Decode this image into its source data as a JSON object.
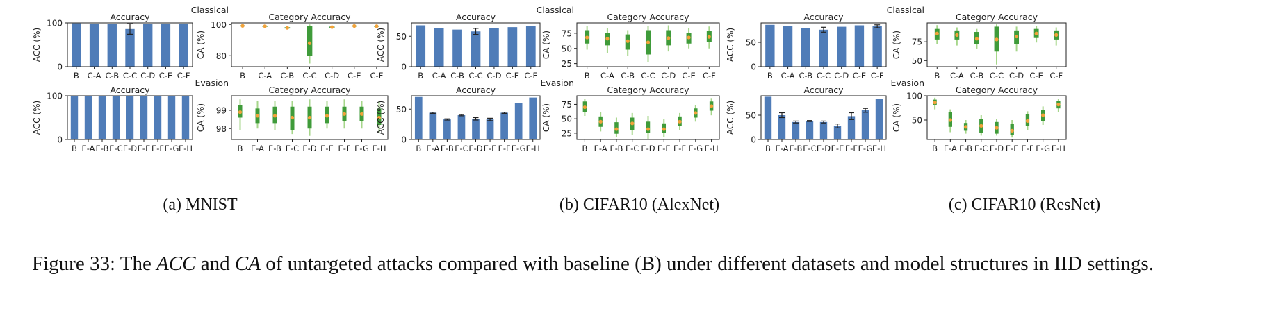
{
  "sublabels": {
    "a": "(a)  MNIST",
    "b": "(b)  CIFAR10 (AlexNet)",
    "c": "(c)  CIFAR10 (ResNet)"
  },
  "caption": {
    "prefix": "Figure 33: The ",
    "acc": "ACC",
    "and": " and ",
    "ca": "CA",
    "suffix": " of untargeted attacks compared with baseline (B) under different datasets and model structures in IID settings."
  },
  "chart_data": [
    {
      "id": "mnist-classical-acc",
      "type": "bar",
      "title": "Accuracy",
      "ylabel": "ACC (%)",
      "categories": [
        "B",
        "C-A",
        "C-B",
        "C-C",
        "C-D",
        "C-E",
        "C-F"
      ],
      "values": [
        99,
        98.5,
        97.5,
        86,
        98,
        98.5,
        98.5
      ],
      "errors": [
        0,
        0,
        0,
        12,
        0,
        0,
        0
      ],
      "ylim": [
        0,
        100
      ],
      "yticks": [
        0,
        100
      ],
      "color": "#4f7cb8"
    },
    {
      "id": "mnist-classical-ca",
      "type": "box",
      "title": "Category Accuracy",
      "ylabel": "CA (%)",
      "group_label": "Classical",
      "categories": [
        "B",
        "C-A",
        "C-B",
        "C-C",
        "C-D",
        "C-E",
        "C-F"
      ],
      "boxes": [
        {
          "wlo": 98.5,
          "q1": 98.8,
          "med": 99.1,
          "q3": 99.4,
          "whi": 99.7
        },
        {
          "wlo": 98.3,
          "q1": 98.6,
          "med": 98.9,
          "q3": 99.2,
          "whi": 99.5
        },
        {
          "wlo": 96.8,
          "q1": 97.4,
          "med": 97.8,
          "q3": 98.2,
          "whi": 98.6
        },
        {
          "wlo": 75,
          "q1": 80,
          "med": 88,
          "q3": 99,
          "whi": 100
        },
        {
          "wlo": 97.5,
          "q1": 98.0,
          "med": 98.3,
          "q3": 98.6,
          "whi": 98.9
        },
        {
          "wlo": 98.4,
          "q1": 98.7,
          "med": 99.0,
          "q3": 99.3,
          "whi": 99.6
        },
        {
          "wlo": 98.3,
          "q1": 98.6,
          "med": 98.9,
          "q3": 99.2,
          "whi": 99.5
        }
      ],
      "ylim": [
        73,
        101
      ],
      "yticks": [
        80,
        100
      ]
    },
    {
      "id": "mnist-evasion-acc",
      "type": "bar",
      "title": "Accuracy",
      "ylabel": "ACC (%)",
      "categories": [
        "B",
        "E-A",
        "E-B",
        "E-C",
        "E-D",
        "E-E",
        "E-F",
        "E-G",
        "E-H"
      ],
      "values": [
        99,
        98.5,
        98.5,
        98.5,
        98.5,
        98.5,
        98.5,
        98.5,
        98.5
      ],
      "errors": [
        0,
        0,
        0,
        0,
        0,
        0,
        0,
        0,
        0
      ],
      "ylim": [
        0,
        100
      ],
      "yticks": [
        0,
        100
      ],
      "color": "#4f7cb8"
    },
    {
      "id": "mnist-evasion-ca",
      "type": "box",
      "title": "Category Accuracy",
      "ylabel": "CA (%)",
      "group_label": "Evasion",
      "categories": [
        "B",
        "E-A",
        "E-B",
        "E-C",
        "E-D",
        "E-E",
        "E-F",
        "E-G",
        "E-H"
      ],
      "boxes": [
        {
          "wlo": 97.9,
          "q1": 98.6,
          "med": 98.9,
          "q3": 99.3,
          "whi": 99.6
        },
        {
          "wlo": 98.0,
          "q1": 98.3,
          "med": 98.7,
          "q3": 99.1,
          "whi": 99.5
        },
        {
          "wlo": 97.9,
          "q1": 98.3,
          "med": 98.7,
          "q3": 99.2,
          "whi": 99.5
        },
        {
          "wlo": 97.7,
          "q1": 97.9,
          "med": 98.6,
          "q3": 99.2,
          "whi": 99.5
        },
        {
          "wlo": 97.6,
          "q1": 98.0,
          "med": 98.6,
          "q3": 99.2,
          "whi": 99.6
        },
        {
          "wlo": 98.0,
          "q1": 98.3,
          "med": 98.7,
          "q3": 99.2,
          "whi": 99.5
        },
        {
          "wlo": 98.0,
          "q1": 98.4,
          "med": 98.8,
          "q3": 99.2,
          "whi": 99.6
        },
        {
          "wlo": 98.0,
          "q1": 98.4,
          "med": 98.8,
          "q3": 99.2,
          "whi": 99.5
        },
        {
          "wlo": 97.8,
          "q1": 98.2,
          "med": 98.6,
          "q3": 99.1,
          "whi": 99.5
        }
      ],
      "ylim": [
        97.4,
        99.8
      ],
      "yticks": [
        98,
        99
      ]
    },
    {
      "id": "alexnet-classical-acc",
      "type": "bar",
      "title": "Accuracy",
      "ylabel": "ACC (%)",
      "categories": [
        "B",
        "C-A",
        "C-B",
        "C-C",
        "C-D",
        "C-E",
        "C-F"
      ],
      "values": [
        68,
        64,
        61,
        58,
        64,
        65,
        67
      ],
      "errors": [
        0,
        0,
        0,
        5,
        0,
        0,
        0
      ],
      "ylim": [
        0,
        72
      ],
      "yticks": [
        0,
        50
      ],
      "color": "#4f7cb8"
    },
    {
      "id": "alexnet-classical-ca",
      "type": "box",
      "title": "Category Accuracy",
      "ylabel": "CA (%)",
      "group_label": "Classical",
      "categories": [
        "B",
        "C-A",
        "C-B",
        "C-C",
        "C-D",
        "C-E",
        "C-F"
      ],
      "boxes": [
        {
          "wlo": 48,
          "q1": 58,
          "med": 68,
          "q3": 80,
          "whi": 87
        },
        {
          "wlo": 42,
          "q1": 55,
          "med": 66,
          "q3": 76,
          "whi": 84
        },
        {
          "wlo": 38,
          "q1": 48,
          "med": 62,
          "q3": 73,
          "whi": 80
        },
        {
          "wlo": 28,
          "q1": 40,
          "med": 60,
          "q3": 80,
          "whi": 87
        },
        {
          "wlo": 45,
          "q1": 55,
          "med": 67,
          "q3": 80,
          "whi": 88
        },
        {
          "wlo": 50,
          "q1": 58,
          "med": 68,
          "q3": 76,
          "whi": 84
        },
        {
          "wlo": 50,
          "q1": 60,
          "med": 69,
          "q3": 79,
          "whi": 86
        }
      ],
      "ylim": [
        20,
        92
      ],
      "yticks": [
        25,
        50,
        75
      ]
    },
    {
      "id": "alexnet-evasion-acc",
      "type": "bar",
      "title": "Accuracy",
      "ylabel": "ACC (%)",
      "categories": [
        "B",
        "E-A",
        "E-B",
        "E-C",
        "E-D",
        "E-E",
        "E-F",
        "E-G",
        "E-H"
      ],
      "values": [
        70,
        44,
        33,
        40,
        34,
        33,
        44,
        60,
        69
      ],
      "errors": [
        0,
        1,
        1,
        1,
        2,
        2,
        1,
        0,
        0
      ],
      "ylim": [
        0,
        72
      ],
      "yticks": [
        0,
        50
      ],
      "color": "#4f7cb8"
    },
    {
      "id": "alexnet-evasion-ca",
      "type": "box",
      "title": "Category Accuracy",
      "ylabel": "CA (%)",
      "group_label": "Evasion",
      "categories": [
        "B",
        "E-A",
        "E-B",
        "E-C",
        "E-D",
        "E-E",
        "E-F",
        "E-G",
        "E-H"
      ],
      "boxes": [
        {
          "wlo": 55,
          "q1": 62,
          "med": 70,
          "q3": 80,
          "whi": 85
        },
        {
          "wlo": 28,
          "q1": 36,
          "med": 45,
          "q3": 54,
          "whi": 62
        },
        {
          "wlo": 18,
          "q1": 24,
          "med": 32,
          "q3": 44,
          "whi": 52
        },
        {
          "wlo": 22,
          "q1": 30,
          "med": 42,
          "q3": 52,
          "whi": 60
        },
        {
          "wlo": 15,
          "q1": 25,
          "med": 32,
          "q3": 45,
          "whi": 55
        },
        {
          "wlo": 18,
          "q1": 25,
          "med": 32,
          "q3": 42,
          "whi": 50
        },
        {
          "wlo": 30,
          "q1": 38,
          "med": 45,
          "q3": 54,
          "whi": 60
        },
        {
          "wlo": 45,
          "q1": 52,
          "med": 60,
          "q3": 68,
          "whi": 74
        },
        {
          "wlo": 56,
          "q1": 64,
          "med": 72,
          "q3": 80,
          "whi": 86
        }
      ],
      "ylim": [
        14,
        90
      ],
      "yticks": [
        25,
        50,
        75
      ]
    },
    {
      "id": "resnet-classical-acc",
      "type": "bar",
      "title": "Accuracy",
      "ylabel": "ACC (%)",
      "categories": [
        "B",
        "C-A",
        "C-B",
        "C-C",
        "C-D",
        "C-E",
        "C-F"
      ],
      "values": [
        86,
        84,
        79,
        76,
        82,
        85,
        83
      ],
      "errors": [
        0,
        0,
        0,
        5,
        0,
        0,
        3
      ],
      "ylim": [
        0,
        90
      ],
      "yticks": [
        0,
        50
      ],
      "color": "#4f7cb8"
    },
    {
      "id": "resnet-classical-ca",
      "type": "box",
      "title": "Category Accuracy",
      "ylabel": "CA (%)",
      "group_label": "Classical",
      "categories": [
        "B",
        "C-A",
        "C-B",
        "C-C",
        "C-D",
        "C-E",
        "C-F"
      ],
      "boxes": [
        {
          "wlo": 72,
          "q1": 78,
          "med": 86,
          "q3": 92,
          "whi": 97
        },
        {
          "wlo": 70,
          "q1": 78,
          "med": 84,
          "q3": 90,
          "whi": 94
        },
        {
          "wlo": 66,
          "q1": 72,
          "med": 79,
          "q3": 88,
          "whi": 92
        },
        {
          "wlo": 45,
          "q1": 62,
          "med": 78,
          "q3": 95,
          "whi": 98
        },
        {
          "wlo": 62,
          "q1": 72,
          "med": 82,
          "q3": 90,
          "whi": 95
        },
        {
          "wlo": 74,
          "q1": 80,
          "med": 86,
          "q3": 92,
          "whi": 96
        },
        {
          "wlo": 70,
          "q1": 78,
          "med": 84,
          "q3": 90,
          "whi": 94
        }
      ],
      "ylim": [
        42,
        100
      ],
      "yticks": [
        50,
        75
      ]
    },
    {
      "id": "resnet-evasion-acc",
      "type": "bar",
      "title": "Accuracy",
      "ylabel": "ACC (%)",
      "categories": [
        "B",
        "E-A",
        "E-B",
        "E-C",
        "E-D",
        "E-E",
        "E-F",
        "E-G",
        "E-H"
      ],
      "values": [
        88,
        50,
        36,
        38,
        36,
        28,
        48,
        60,
        84
      ],
      "errors": [
        0,
        5,
        2,
        1,
        2,
        4,
        7,
        4,
        0
      ],
      "ylim": [
        0,
        90
      ],
      "yticks": [
        0,
        50
      ],
      "color": "#4f7cb8"
    },
    {
      "id": "resnet-evasion-ca",
      "type": "box",
      "title": "Category Accuracy",
      "ylabel": "CA (%)",
      "group_label": "Evasion",
      "categories": [
        "B",
        "E-A",
        "E-B",
        "E-C",
        "E-D",
        "E-E",
        "E-F",
        "E-G",
        "E-H"
      ],
      "boxes": [
        {
          "wlo": 72,
          "q1": 80,
          "med": 86,
          "q3": 92,
          "whi": 96
        },
        {
          "wlo": 25,
          "q1": 36,
          "med": 50,
          "q3": 66,
          "whi": 72
        },
        {
          "wlo": 22,
          "q1": 28,
          "med": 36,
          "q3": 44,
          "whi": 50
        },
        {
          "wlo": 18,
          "q1": 24,
          "med": 38,
          "q3": 52,
          "whi": 60
        },
        {
          "wlo": 18,
          "q1": 22,
          "med": 34,
          "q3": 46,
          "whi": 52
        },
        {
          "wlo": 14,
          "q1": 20,
          "med": 28,
          "q3": 42,
          "whi": 50
        },
        {
          "wlo": 30,
          "q1": 38,
          "med": 48,
          "q3": 62,
          "whi": 68
        },
        {
          "wlo": 40,
          "q1": 48,
          "med": 60,
          "q3": 70,
          "whi": 78
        },
        {
          "wlo": 66,
          "q1": 74,
          "med": 82,
          "q3": 90,
          "whi": 94
        }
      ],
      "ylim": [
        10,
        100
      ],
      "yticks": [
        50,
        100
      ]
    }
  ]
}
